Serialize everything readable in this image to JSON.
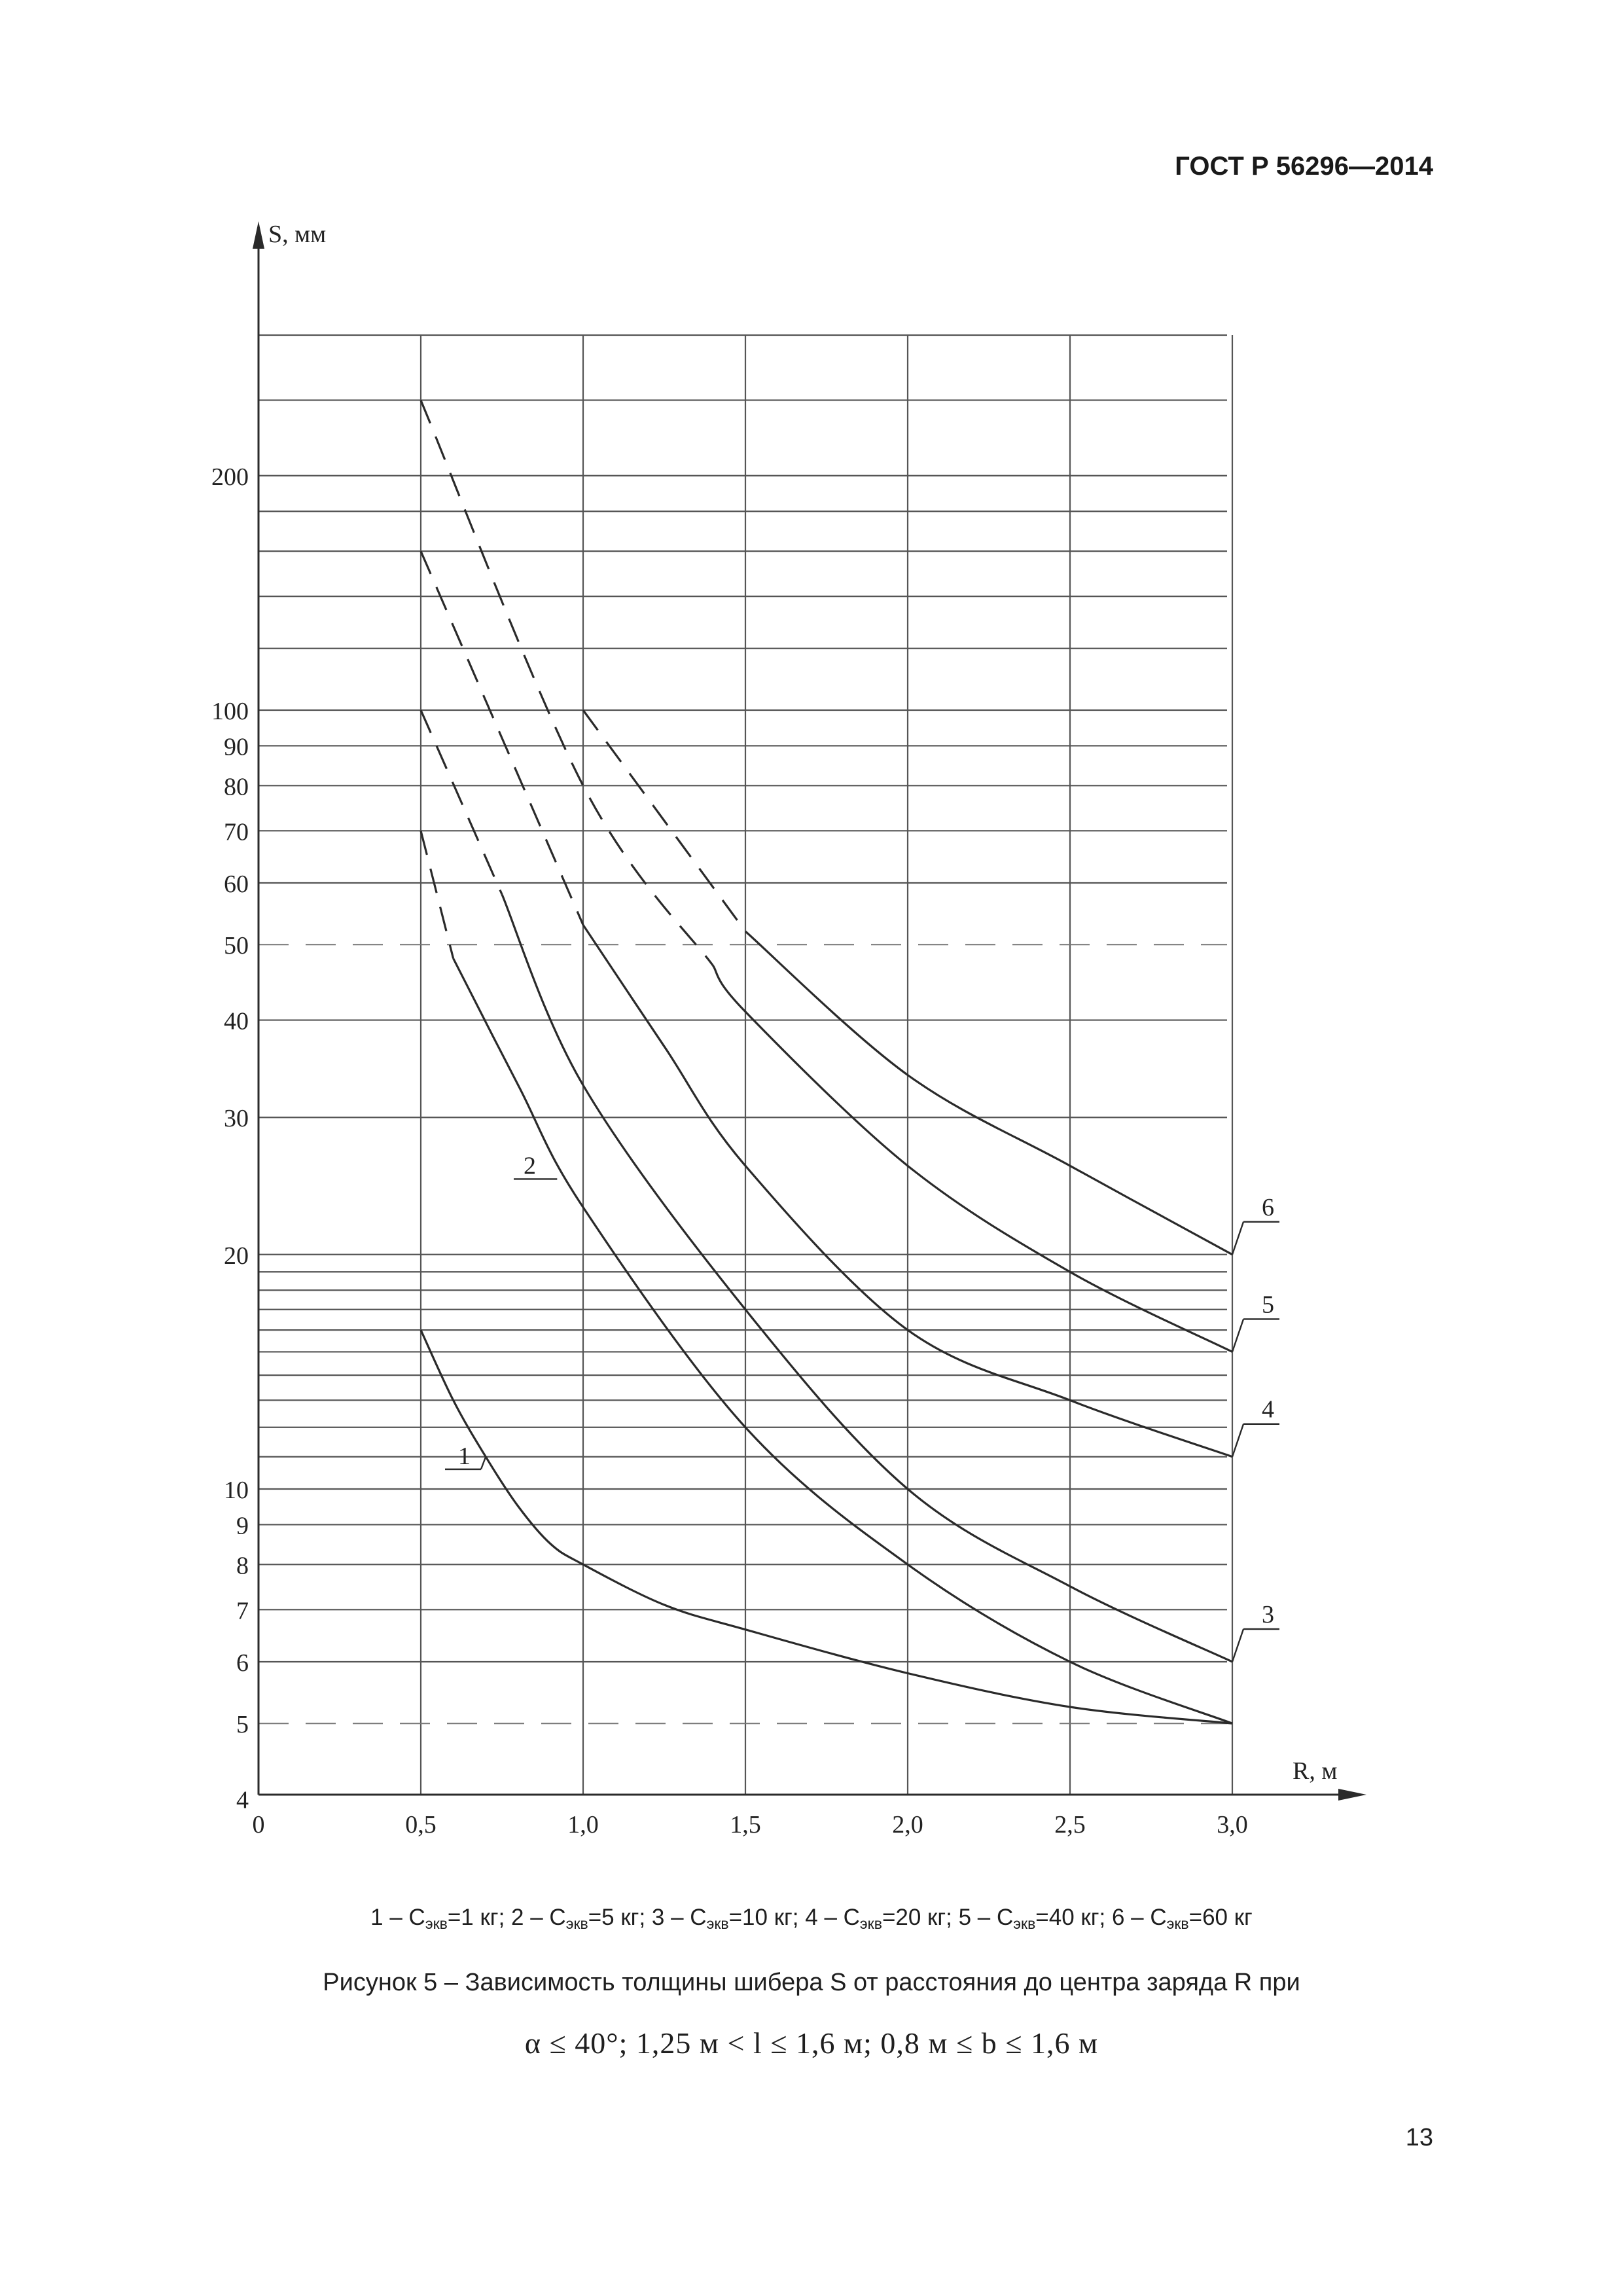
{
  "document": {
    "standard": "ГОСТ Р 56296—2014",
    "page_number": "13"
  },
  "figure": {
    "legend_items": [
      {
        "num": "1",
        "sym": "С",
        "sub": "экв",
        "val": "=1 кг"
      },
      {
        "num": "2",
        "sym": "С",
        "sub": "экв",
        "val": "=5 кг"
      },
      {
        "num": "3",
        "sym": "С",
        "sub": "экв",
        "val": "=10 кг"
      },
      {
        "num": "4",
        "sym": "С",
        "sub": "экв",
        "val": "=20 кг"
      },
      {
        "num": "5",
        "sym": "С",
        "sub": "экв",
        "val": "=40 кг"
      },
      {
        "num": "6",
        "sym": "С",
        "sub": "экв",
        "val": "=60 кг"
      }
    ],
    "caption": "Рисунок 5 – Зависимость толщины шибера S от расстояния до центра заряда R при",
    "condition": "α ≤ 40°; 1,25 м < l ≤ 1,6 м; 0,8 м ≤ b ≤ 1,6 м"
  },
  "chart_data": {
    "type": "line",
    "title": "",
    "xlabel": "R, м",
    "ylabel": "S, мм",
    "x_scale": "linear",
    "y_scale": "log",
    "xlim": [
      0,
      3.0
    ],
    "ylim": [
      4,
      300
    ],
    "x_ticks": [
      0,
      0.5,
      1.0,
      1.5,
      2.0,
      2.5,
      3.0
    ],
    "x_tick_labels": [
      "0",
      "0,5",
      "1,0",
      "1,5",
      "2,0",
      "2,5",
      "3,0"
    ],
    "y_ticks": [
      4,
      5,
      6,
      7,
      8,
      9,
      10,
      20,
      30,
      40,
      50,
      60,
      70,
      80,
      90,
      100,
      200
    ],
    "y_tick_labels": [
      "4",
      "5",
      "6",
      "7",
      "8",
      "9",
      "10",
      "20",
      "30",
      "40",
      "50",
      "60",
      "70",
      "80",
      "90",
      "100",
      "200"
    ],
    "grid": true,
    "reference_lines_dashed_y": [
      5,
      50
    ],
    "series": [
      {
        "name": "1",
        "dashed": [],
        "solid": [
          [
            0.5,
            16
          ],
          [
            0.6,
            13
          ],
          [
            0.7,
            11
          ],
          [
            0.8,
            9.5
          ],
          [
            0.9,
            8.5
          ],
          [
            1.0,
            8
          ],
          [
            1.25,
            7.1
          ],
          [
            1.5,
            6.6
          ],
          [
            2.0,
            5.8
          ],
          [
            2.5,
            5.25
          ],
          [
            3.0,
            5
          ]
        ]
      },
      {
        "name": "2",
        "dashed": [
          [
            0.5,
            70
          ],
          [
            0.6,
            48
          ]
        ],
        "solid": [
          [
            0.6,
            48
          ],
          [
            0.8,
            33
          ],
          [
            1.0,
            23
          ],
          [
            1.5,
            12
          ],
          [
            2.0,
            8
          ],
          [
            2.5,
            6
          ],
          [
            3.0,
            5
          ]
        ]
      },
      {
        "name": "3",
        "dashed": [
          [
            0.5,
            100
          ],
          [
            0.75,
            58
          ]
        ],
        "solid": [
          [
            0.75,
            58
          ],
          [
            1.0,
            33
          ],
          [
            1.5,
            17
          ],
          [
            2.0,
            10
          ],
          [
            2.5,
            7.5
          ],
          [
            3.0,
            6
          ]
        ]
      },
      {
        "name": "4",
        "dashed": [
          [
            0.5,
            160
          ],
          [
            1.0,
            53
          ]
        ],
        "solid": [
          [
            1.0,
            53
          ],
          [
            1.25,
            37
          ],
          [
            1.5,
            26
          ],
          [
            2.0,
            16
          ],
          [
            2.5,
            13
          ],
          [
            3.0,
            11
          ]
        ]
      },
      {
        "name": "5",
        "dashed": [
          [
            0.5,
            250
          ],
          [
            1.0,
            80
          ],
          [
            1.4,
            47
          ]
        ],
        "solid": [
          [
            1.4,
            47
          ],
          [
            1.5,
            41
          ],
          [
            2.0,
            26
          ],
          [
            2.5,
            19
          ],
          [
            3.0,
            15
          ]
        ]
      },
      {
        "name": "6",
        "dashed": [
          [
            1.0,
            100
          ],
          [
            1.5,
            52
          ]
        ],
        "solid": [
          [
            1.5,
            52
          ],
          [
            2.0,
            34
          ],
          [
            2.5,
            26
          ],
          [
            3.0,
            20
          ]
        ]
      }
    ],
    "curve_labels": [
      {
        "name": "1",
        "at": [
          0.7,
          11
        ]
      },
      {
        "name": "2",
        "at": [
          0.92,
          25
        ]
      },
      {
        "name": "3",
        "at": [
          3.0,
          6
        ]
      },
      {
        "name": "4",
        "at": [
          3.0,
          11
        ]
      },
      {
        "name": "5",
        "at": [
          3.0,
          15
        ]
      },
      {
        "name": "6",
        "at": [
          3.0,
          20
        ]
      }
    ]
  }
}
